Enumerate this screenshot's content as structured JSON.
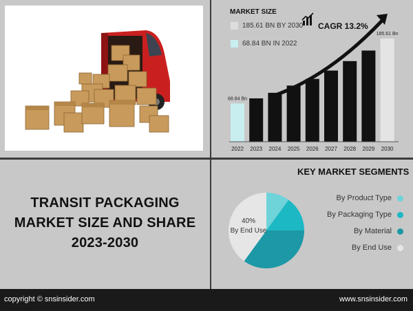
{
  "title": {
    "line1": "TRANSIT PACKAGING",
    "line2": "MARKET SIZE AND SHARE",
    "line3": "2023-2030"
  },
  "market_size": {
    "heading": "MARKET SIZE",
    "legend_2030": "185.61 BN BY 2030",
    "legend_2022": "68.84 BN IN 2022",
    "cagr": "CAGR 13.2%",
    "label_2022": "68.84 Bn",
    "label_2030": "185.61 Bn"
  },
  "segments": {
    "heading": "KEY MARKET SEGMENTS",
    "items": [
      "By Product Type",
      "By Packaging Type",
      "By Material",
      "By End Use"
    ],
    "pie_label_pct": "40%",
    "pie_label_name": "By End Use"
  },
  "footer": {
    "left": "copyright © snsinsider.com",
    "right": "www.snsinsider.com"
  },
  "colors": {
    "bar_dark": "#111111",
    "bar_light": "#c8eef0",
    "seg_product": "#6fd3da",
    "seg_packaging": "#1cb8c4",
    "seg_material": "#1c98a6",
    "seg_enduse": "#e6e6e6"
  },
  "chart_data": [
    {
      "type": "bar",
      "categories": [
        "2022",
        "2023",
        "2024",
        "2025",
        "2026",
        "2027",
        "2028",
        "2029",
        "2030"
      ],
      "values": [
        68.84,
        78,
        88,
        101,
        113,
        128,
        145,
        164,
        185.61
      ],
      "ylim": [
        0,
        200
      ]
    },
    {
      "type": "pie",
      "labels": [
        "By Product Type",
        "By Packaging Type",
        "By Material",
        "By End Use"
      ],
      "values": [
        10,
        15,
        35,
        40
      ]
    }
  ]
}
